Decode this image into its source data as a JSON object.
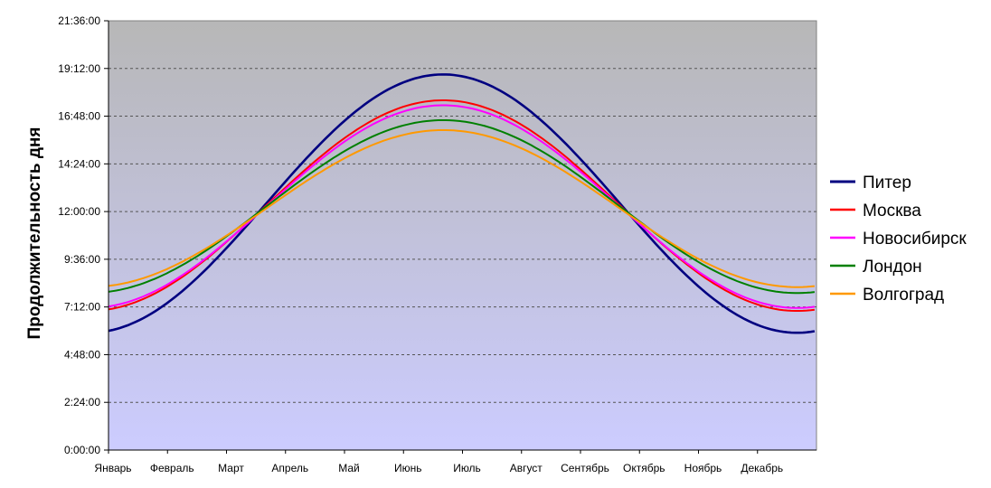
{
  "chart_data": {
    "type": "line",
    "title": "",
    "xlabel": "",
    "ylabel": "Продолжительность дня",
    "categories": [
      "Январь",
      "Февраль",
      "Март",
      "Апрель",
      "Май",
      "Июнь",
      "Июль",
      "Август",
      "Сентябрь",
      "Октябрь",
      "Ноябрь",
      "Декабрь"
    ],
    "yticks": [
      "0:00:00",
      "2:24:00",
      "4:48:00",
      "7:12:00",
      "9:36:00",
      "12:00:00",
      "14:24:00",
      "16:48:00",
      "19:12:00",
      "21:36:00"
    ],
    "ylim_hours": [
      0,
      21.6
    ],
    "grid": true,
    "legend_position": "right",
    "background_gradient": [
      "#b7b7b7",
      "#ccccff"
    ],
    "series": [
      {
        "name": "Питер",
        "color": "#000080",
        "daylength_hours": {
          "min": 5.9,
          "max": 18.9
        }
      },
      {
        "name": "Москва",
        "color": "#ff0000",
        "daylength_hours": {
          "min": 7.0,
          "max": 17.6
        }
      },
      {
        "name": "Новосибирск",
        "color": "#ff00ff",
        "daylength_hours": {
          "min": 7.15,
          "max": 17.35
        }
      },
      {
        "name": "Лондон",
        "color": "#008000",
        "daylength_hours": {
          "min": 7.9,
          "max": 16.6
        }
      },
      {
        "name": "Волгоград",
        "color": "#ff9900",
        "daylength_hours": {
          "min": 8.2,
          "max": 16.1
        }
      }
    ]
  }
}
